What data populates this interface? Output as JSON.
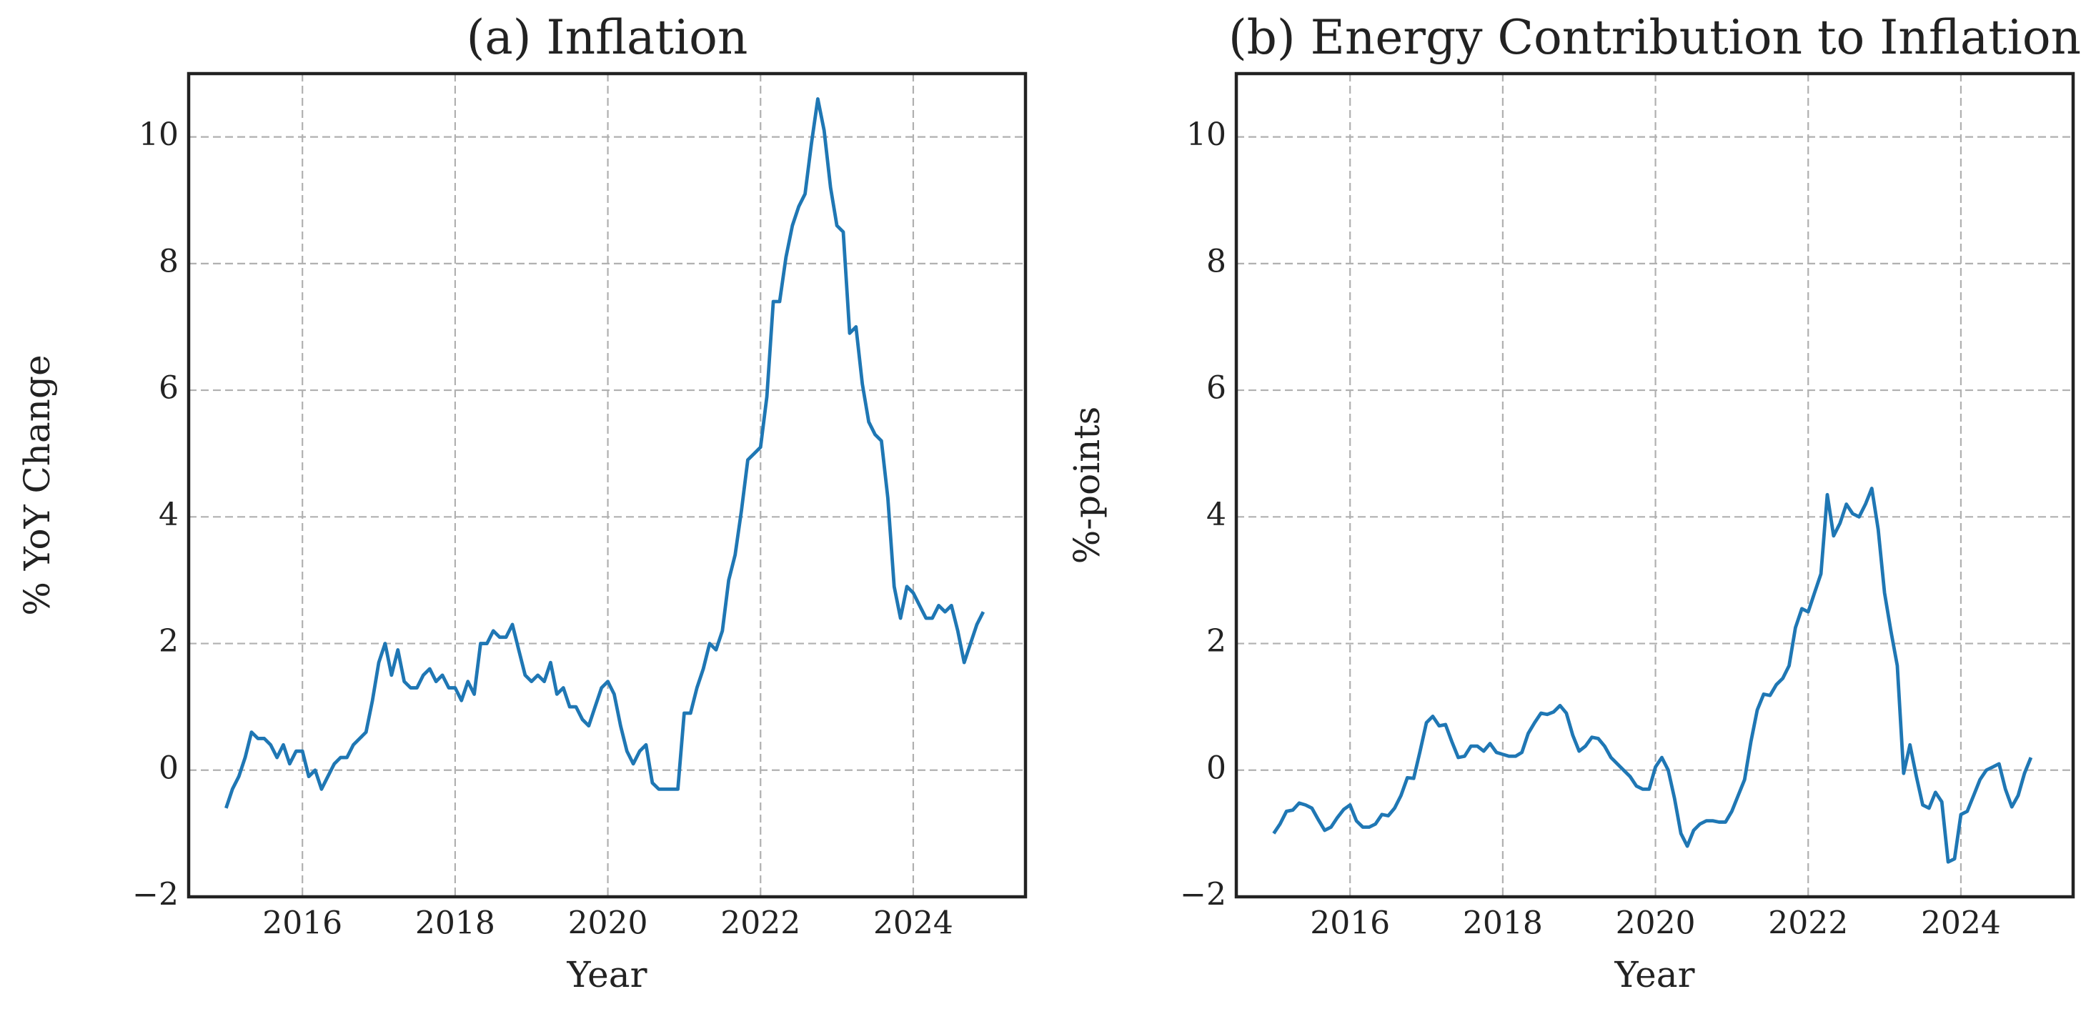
{
  "chart_data": [
    {
      "type": "line",
      "title": "(a) Inflation",
      "xlabel": "Year",
      "ylabel": "% YoY Change",
      "x": [
        2015,
        2015.083,
        2015.167,
        2015.25,
        2015.333,
        2015.417,
        2015.5,
        2015.583,
        2015.667,
        2015.75,
        2015.833,
        2015.917,
        2016,
        2016.083,
        2016.167,
        2016.25,
        2016.333,
        2016.417,
        2016.5,
        2016.583,
        2016.667,
        2016.75,
        2016.833,
        2016.917,
        2017,
        2017.083,
        2017.167,
        2017.25,
        2017.333,
        2017.417,
        2017.5,
        2017.583,
        2017.667,
        2017.75,
        2017.833,
        2017.917,
        2018,
        2018.083,
        2018.167,
        2018.25,
        2018.333,
        2018.417,
        2018.5,
        2018.583,
        2018.667,
        2018.75,
        2018.833,
        2018.917,
        2019,
        2019.083,
        2019.167,
        2019.25,
        2019.333,
        2019.417,
        2019.5,
        2019.583,
        2019.667,
        2019.75,
        2019.833,
        2019.917,
        2020,
        2020.083,
        2020.167,
        2020.25,
        2020.333,
        2020.417,
        2020.5,
        2020.583,
        2020.667,
        2020.75,
        2020.833,
        2020.917,
        2021,
        2021.083,
        2021.167,
        2021.25,
        2021.333,
        2021.417,
        2021.5,
        2021.583,
        2021.667,
        2021.75,
        2021.833,
        2021.917,
        2022,
        2022.083,
        2022.167,
        2022.25,
        2022.333,
        2022.417,
        2022.5,
        2022.583,
        2022.667,
        2022.75,
        2022.833,
        2022.917,
        2023,
        2023.083,
        2023.167,
        2023.25,
        2023.333,
        2023.417,
        2023.5,
        2023.583,
        2023.667,
        2023.75,
        2023.833,
        2023.917,
        2024,
        2024.083,
        2024.167,
        2024.25,
        2024.333,
        2024.417,
        2024.5,
        2024.583,
        2024.667,
        2024.75,
        2024.833,
        2024.917
      ],
      "series": [
        {
          "name": "Inflation",
          "color": "#1f77b4",
          "values": [
            -0.6,
            -0.3,
            -0.1,
            0.2,
            0.6,
            0.5,
            0.5,
            0.4,
            0.2,
            0.4,
            0.1,
            0.3,
            0.3,
            -0.1,
            0.0,
            -0.3,
            -0.1,
            0.1,
            0.2,
            0.2,
            0.4,
            0.5,
            0.6,
            1.1,
            1.7,
            2.0,
            1.5,
            1.9,
            1.4,
            1.3,
            1.3,
            1.5,
            1.6,
            1.4,
            1.5,
            1.3,
            1.3,
            1.1,
            1.4,
            1.2,
            2.0,
            2.0,
            2.2,
            2.1,
            2.1,
            2.3,
            1.9,
            1.5,
            1.4,
            1.5,
            1.4,
            1.7,
            1.2,
            1.3,
            1.0,
            1.0,
            0.8,
            0.7,
            1.0,
            1.3,
            1.4,
            1.2,
            0.7,
            0.3,
            0.1,
            0.3,
            0.4,
            -0.2,
            -0.3,
            -0.3,
            -0.3,
            -0.3,
            0.9,
            0.9,
            1.3,
            1.6,
            2.0,
            1.9,
            2.2,
            3.0,
            3.4,
            4.1,
            4.9,
            5.0,
            5.1,
            5.9,
            7.4,
            7.4,
            8.1,
            8.6,
            8.9,
            9.1,
            9.9,
            10.6,
            10.1,
            9.2,
            8.6,
            8.5,
            6.9,
            7.0,
            6.1,
            5.5,
            5.3,
            5.2,
            4.3,
            2.9,
            2.4,
            2.9,
            2.8,
            2.6,
            2.4,
            2.4,
            2.6,
            2.5,
            2.6,
            2.2,
            1.7,
            2.0,
            2.3,
            2.5
          ]
        }
      ],
      "xlim": [
        2014.51,
        2025.47
      ],
      "ylim": [
        -2,
        11
      ],
      "xticks": [
        2016,
        2018,
        2020,
        2022,
        2024
      ],
      "yticks": [
        {
          "value": -2,
          "label": "−2"
        },
        0,
        2,
        4,
        6,
        8,
        10
      ],
      "grid": true
    },
    {
      "type": "line",
      "title": "(b) Energy Contribution to Inflation",
      "xlabel": "Year",
      "ylabel": "%-points",
      "x": [
        2015,
        2015.083,
        2015.167,
        2015.25,
        2015.333,
        2015.417,
        2015.5,
        2015.583,
        2015.667,
        2015.75,
        2015.833,
        2015.917,
        2016,
        2016.083,
        2016.167,
        2016.25,
        2016.333,
        2016.417,
        2016.5,
        2016.583,
        2016.667,
        2016.75,
        2016.833,
        2016.917,
        2017,
        2017.083,
        2017.167,
        2017.25,
        2017.333,
        2017.417,
        2017.5,
        2017.583,
        2017.667,
        2017.75,
        2017.833,
        2017.917,
        2018,
        2018.083,
        2018.167,
        2018.25,
        2018.333,
        2018.417,
        2018.5,
        2018.583,
        2018.667,
        2018.75,
        2018.833,
        2018.917,
        2019,
        2019.083,
        2019.167,
        2019.25,
        2019.333,
        2019.417,
        2019.5,
        2019.583,
        2019.667,
        2019.75,
        2019.833,
        2019.917,
        2020,
        2020.083,
        2020.167,
        2020.25,
        2020.333,
        2020.417,
        2020.5,
        2020.583,
        2020.667,
        2020.75,
        2020.833,
        2020.917,
        2021,
        2021.083,
        2021.167,
        2021.25,
        2021.333,
        2021.417,
        2021.5,
        2021.583,
        2021.667,
        2021.75,
        2021.833,
        2021.917,
        2022,
        2022.083,
        2022.167,
        2022.25,
        2022.333,
        2022.417,
        2022.5,
        2022.583,
        2022.667,
        2022.75,
        2022.833,
        2022.917,
        2023,
        2023.083,
        2023.167,
        2023.25,
        2023.333,
        2023.417,
        2023.5,
        2023.583,
        2023.667,
        2023.75,
        2023.833,
        2023.917,
        2024,
        2024.083,
        2024.167,
        2024.25,
        2024.333,
        2024.417,
        2024.5,
        2024.583,
        2024.667,
        2024.75,
        2024.833,
        2024.917
      ],
      "series": [
        {
          "name": "Energy contribution",
          "color": "#1f77b4",
          "values": [
            -1.0,
            -0.85,
            -0.65,
            -0.63,
            -0.52,
            -0.55,
            -0.6,
            -0.78,
            -0.95,
            -0.9,
            -0.75,
            -0.62,
            -0.55,
            -0.8,
            -0.9,
            -0.9,
            -0.85,
            -0.7,
            -0.72,
            -0.6,
            -0.4,
            -0.12,
            -0.13,
            0.3,
            0.75,
            0.85,
            0.7,
            0.72,
            0.45,
            0.2,
            0.22,
            0.38,
            0.38,
            0.3,
            0.42,
            0.28,
            0.25,
            0.22,
            0.22,
            0.28,
            0.58,
            0.75,
            0.9,
            0.88,
            0.92,
            1.02,
            0.9,
            0.55,
            0.3,
            0.38,
            0.52,
            0.5,
            0.38,
            0.2,
            0.1,
            0.0,
            -0.1,
            -0.25,
            -0.3,
            -0.3,
            0.05,
            0.2,
            0.0,
            -0.45,
            -1.0,
            -1.2,
            -0.95,
            -0.85,
            -0.8,
            -0.8,
            -0.82,
            -0.82,
            -0.65,
            -0.4,
            -0.15,
            0.45,
            0.95,
            1.2,
            1.18,
            1.35,
            1.45,
            1.65,
            2.25,
            2.55,
            2.5,
            2.8,
            3.1,
            4.35,
            3.7,
            3.9,
            4.2,
            4.05,
            4.0,
            4.2,
            4.45,
            3.8,
            2.8,
            2.2,
            1.65,
            -0.05,
            0.4,
            -0.1,
            -0.55,
            -0.6,
            -0.35,
            -0.5,
            -1.45,
            -1.4,
            -0.7,
            -0.65,
            -0.4,
            -0.15,
            0.0,
            0.05,
            0.1,
            -0.3,
            -0.58,
            -0.4,
            -0.05,
            0.2
          ]
        }
      ],
      "xlim": [
        2014.51,
        2025.47
      ],
      "ylim": [
        -2,
        11
      ],
      "xticks": [
        2016,
        2018,
        2020,
        2022,
        2024
      ],
      "yticks": [
        {
          "value": -2,
          "label": "−2"
        },
        0,
        2,
        4,
        6,
        8,
        10
      ],
      "grid": true
    }
  ]
}
